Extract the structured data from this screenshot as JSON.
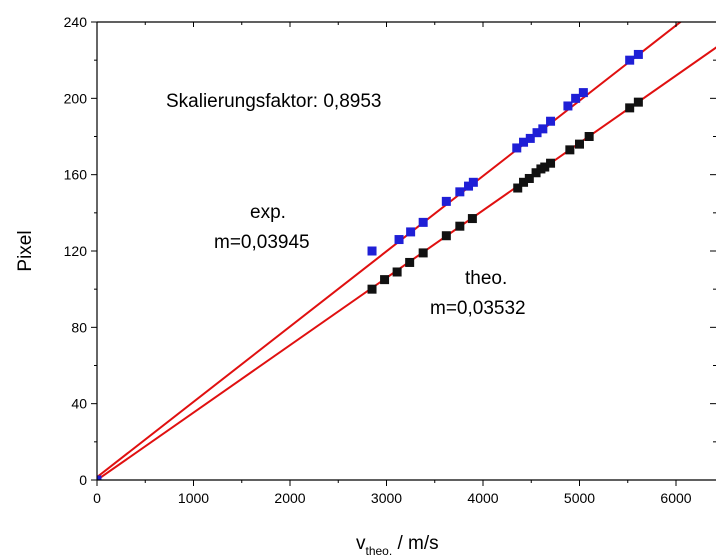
{
  "chart_data": {
    "type": "scatter",
    "title": "",
    "xlabel_main": "v",
    "xlabel_sub": "theo.",
    "xlabel_tail": " / m/s",
    "ylabel": "Pixel",
    "xlim": [
      0,
      6500
    ],
    "ylim": [
      0,
      240
    ],
    "xticks": [
      0,
      1000,
      2000,
      3000,
      4000,
      5000,
      6000
    ],
    "yticks": [
      0,
      40,
      80,
      120,
      160,
      200,
      240
    ],
    "grid": false,
    "series": [
      {
        "color": "#1f1fd6",
        "marker": "square",
        "x": [
          0,
          2850,
          3130,
          3250,
          3380,
          3620,
          3760,
          3850,
          3900,
          4350,
          4420,
          4490,
          4560,
          4620,
          4700,
          4880,
          4960,
          5040,
          5520,
          5610
        ],
        "y": [
          0,
          120,
          126,
          130,
          135,
          146,
          151,
          154,
          156,
          174,
          177,
          179,
          182,
          184,
          188,
          196,
          200,
          203,
          220,
          223
        ]
      },
      {
        "color": "#111111",
        "marker": "square",
        "x": [
          2850,
          2980,
          3110,
          3240,
          3380,
          3620,
          3760,
          3890,
          4360,
          4420,
          4480,
          4550,
          4600,
          4640,
          4700,
          4900,
          5000,
          5100,
          5520,
          5610
        ],
        "y": [
          100,
          105,
          109,
          114,
          119,
          128,
          133,
          137,
          153,
          156,
          158,
          161,
          163,
          164,
          166,
          173,
          176,
          180,
          195,
          198
        ]
      }
    ],
    "fit_lines": [
      {
        "slope": 0.03945,
        "intercept": 1.5,
        "color": "#e01010"
      },
      {
        "slope": 0.03532,
        "intercept": 0.0,
        "color": "#e01010"
      }
    ],
    "annotations": {
      "scale": "Skalierungsfaktor: 0,8953",
      "exp_line1": "exp.",
      "exp_line2": "m=0,03945",
      "theo_line1": "theo.",
      "theo_line2": "m=0,03532"
    }
  }
}
